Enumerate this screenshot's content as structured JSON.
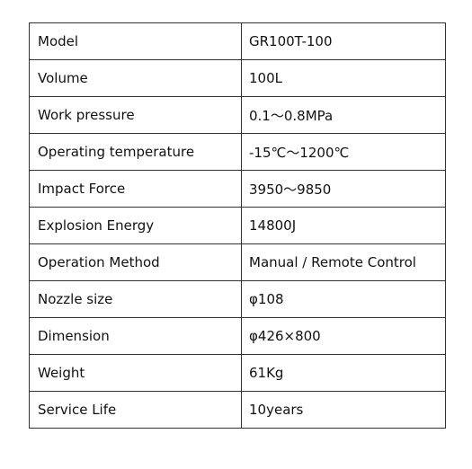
{
  "table": {
    "rows": [
      [
        "Model",
        "GR100T-100"
      ],
      [
        "Volume",
        "100L"
      ],
      [
        "Work pressure",
        "0.1～0.8MPa"
      ],
      [
        "Operating temperature",
        "-15℃～1200℃"
      ],
      [
        "Impact Force",
        "3950～9850"
      ],
      [
        "Explosion Energy",
        "14800J"
      ],
      [
        "Operation Method",
        "Manual / Remote Control"
      ],
      [
        "Nozzle size",
        "φ108"
      ],
      [
        "Dimension",
        "φ426×800"
      ],
      [
        "Weight",
        "61Kg"
      ],
      [
        "Service Life",
        "10years"
      ]
    ]
  }
}
